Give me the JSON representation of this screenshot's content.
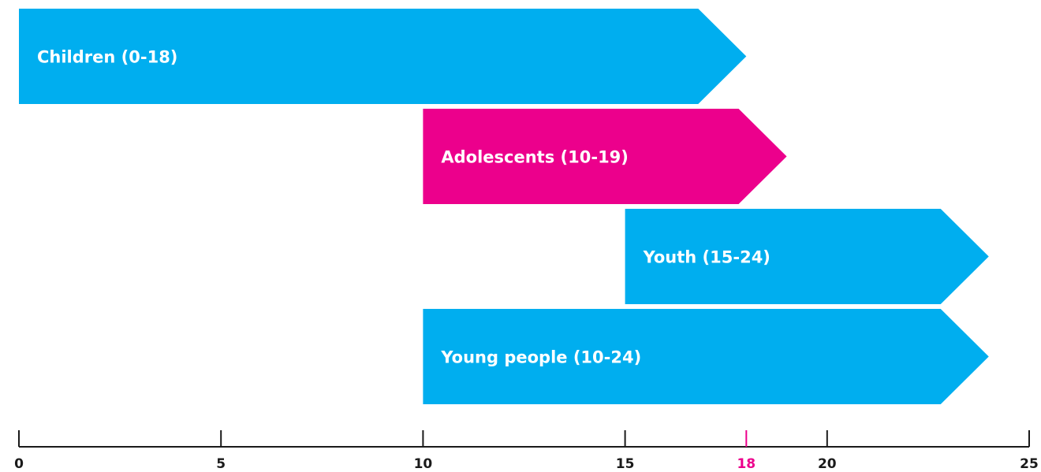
{
  "chart_data": {
    "type": "bar",
    "orientation": "horizontal-range",
    "title": "",
    "xlabel": "",
    "ylabel": "",
    "xlim": [
      0,
      25
    ],
    "grid": false,
    "legend": "none",
    "ranges": [
      {
        "label": "Children (0-18)",
        "start": 0,
        "end": 18,
        "color": "#00aeef"
      },
      {
        "label": "Adolescents (10-19)",
        "start": 10,
        "end": 19,
        "color": "#ec008c"
      },
      {
        "label": "Youth (15-24)",
        "start": 15,
        "end": 24,
        "color": "#00aeef"
      },
      {
        "label": "Young people (10-24)",
        "start": 10,
        "end": 24,
        "color": "#00aeef"
      }
    ],
    "ticks": [
      {
        "value": 0,
        "label": "0"
      },
      {
        "value": 5,
        "label": "5"
      },
      {
        "value": 10,
        "label": "10"
      },
      {
        "value": 15,
        "label": "15"
      },
      {
        "value": 18,
        "label": "18",
        "highlight": true,
        "color": "#ec008c"
      },
      {
        "value": 20,
        "label": "20"
      },
      {
        "value": 25,
        "label": "25"
      }
    ]
  }
}
